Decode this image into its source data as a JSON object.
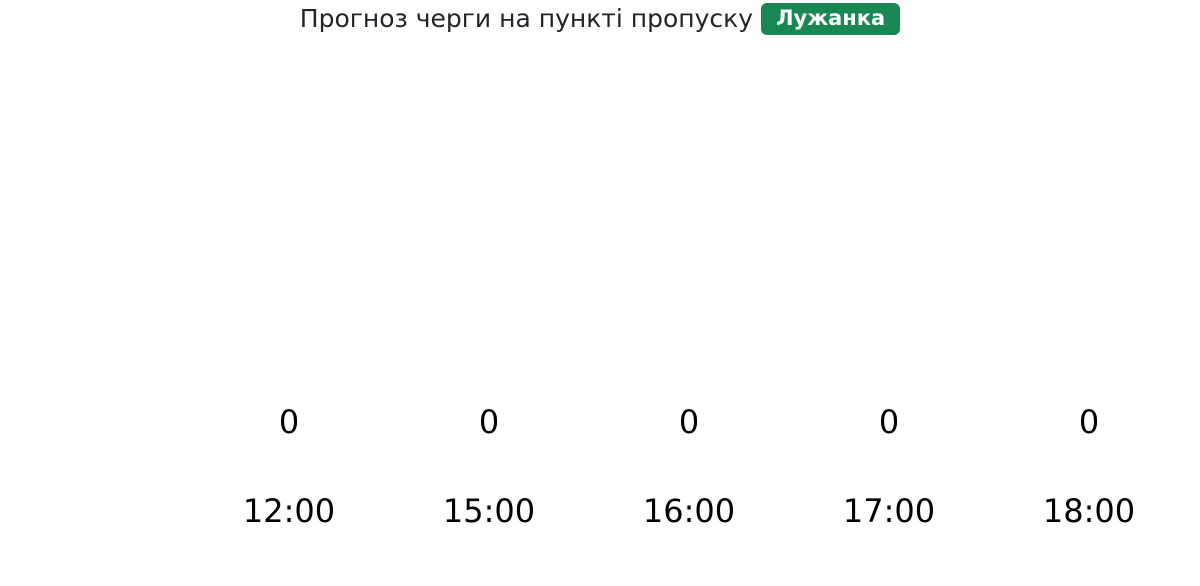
{
  "header": {
    "title": "Прогноз черги на пункті пропуску",
    "badge": "Лужанка",
    "colors": {
      "badge_bg": "#198754",
      "badge_text": "#ffffff",
      "title_text": "#212529",
      "label_text": "#000000"
    }
  },
  "chart_data": {
    "type": "bar",
    "title": "Прогноз черги на пункті пропуску",
    "badge_label": "Лужанка",
    "categories": [
      "12:00",
      "15:00",
      "16:00",
      "17:00",
      "18:00"
    ],
    "values": [
      0,
      0,
      0,
      0,
      0
    ],
    "xlabel": "",
    "ylabel": "",
    "grid": false,
    "legend": false,
    "axes_visible": false,
    "data_labels_visible": true
  }
}
